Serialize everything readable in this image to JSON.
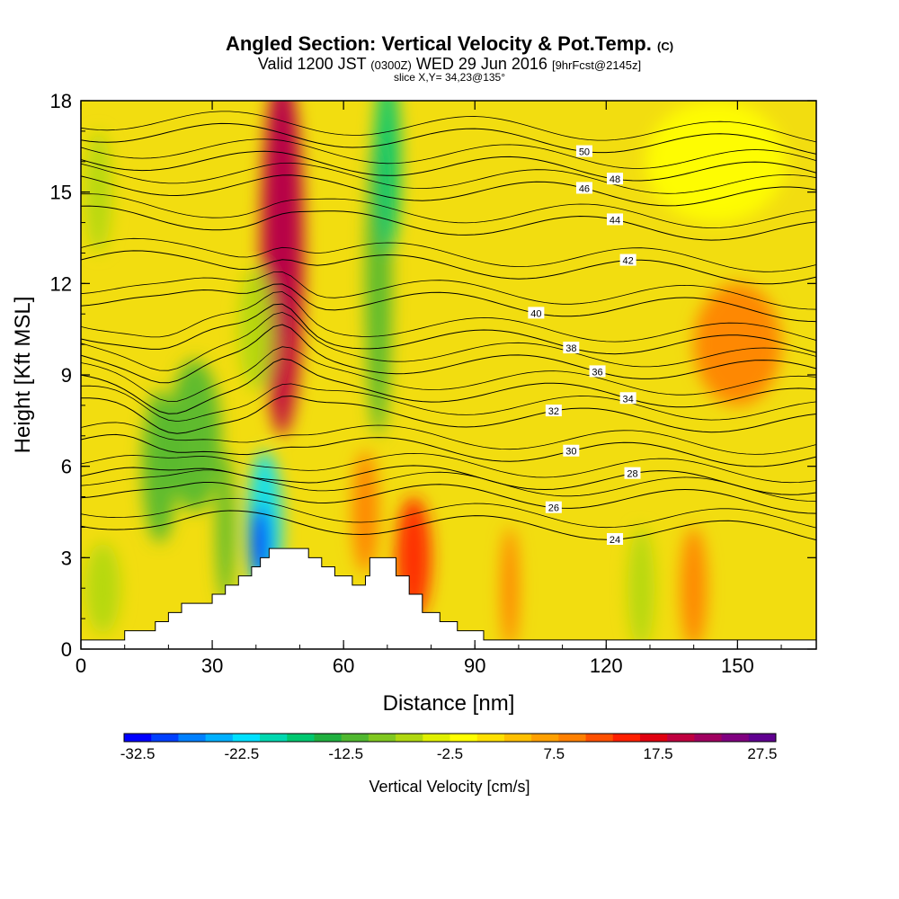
{
  "chart_data": {
    "type": "heatmap",
    "title": "Angled Section: Vertical Velocity & Pot.Temp.",
    "title_mark": "(C)",
    "subtitle": {
      "prefix": "Valid 1200 JST",
      "utc": "(0300Z)",
      "date": "WED 29 Jun 2016",
      "forecast": "[9hrFcst@2145z]"
    },
    "slice_note": "slice X,Y= 34,23@135°",
    "xlabel": "Distance [nm]",
    "ylabel": "Height [Kft MSL]",
    "xlim": [
      0,
      168
    ],
    "ylim": [
      0,
      18
    ],
    "xticks": [
      0,
      30,
      60,
      90,
      120,
      150
    ],
    "yticks": [
      0,
      3,
      6,
      9,
      12,
      15,
      18
    ],
    "colorbar": {
      "label": "Vertical Velocity [cm/s]",
      "ticks": [
        "-32.5",
        "-22.5",
        "-12.5",
        "-2.5",
        "7.5",
        "17.5",
        "27.5"
      ],
      "colors": [
        "#0000ff",
        "#0040ff",
        "#0080ff",
        "#00b0ff",
        "#00e0ff",
        "#00d8b0",
        "#00c870",
        "#20b040",
        "#50b830",
        "#80c820",
        "#b0d810",
        "#e0f000",
        "#ffff00",
        "#ffe000",
        "#ffc000",
        "#ffa000",
        "#ff8000",
        "#ff5000",
        "#ff2000",
        "#e00010",
        "#c00040",
        "#a00060",
        "#800080",
        "#600090"
      ]
    },
    "background_color": "#f2dd10",
    "terrain_profile": [
      [
        0,
        0.3
      ],
      [
        10,
        0.3
      ],
      [
        10,
        0.6
      ],
      [
        17,
        0.6
      ],
      [
        17,
        0.9
      ],
      [
        20,
        0.9
      ],
      [
        20,
        1.2
      ],
      [
        23,
        1.2
      ],
      [
        23,
        1.5
      ],
      [
        30,
        1.5
      ],
      [
        30,
        1.8
      ],
      [
        33,
        1.8
      ],
      [
        33,
        2.1
      ],
      [
        36,
        2.1
      ],
      [
        36,
        2.4
      ],
      [
        39,
        2.4
      ],
      [
        39,
        2.7
      ],
      [
        41,
        2.7
      ],
      [
        41,
        3.0
      ],
      [
        43,
        3.0
      ],
      [
        43,
        3.3
      ],
      [
        52,
        3.3
      ],
      [
        52,
        3.0
      ],
      [
        55,
        3.0
      ],
      [
        55,
        2.7
      ],
      [
        58,
        2.7
      ],
      [
        58,
        2.4
      ],
      [
        62,
        2.4
      ],
      [
        62,
        2.1
      ],
      [
        65,
        2.1
      ],
      [
        65,
        2.4
      ],
      [
        66,
        2.4
      ],
      [
        66,
        3.0
      ],
      [
        72,
        3.0
      ],
      [
        72,
        2.4
      ],
      [
        75,
        2.4
      ],
      [
        75,
        1.8
      ],
      [
        78,
        1.8
      ],
      [
        78,
        1.2
      ],
      [
        82,
        1.2
      ],
      [
        82,
        0.9
      ],
      [
        86,
        0.9
      ],
      [
        86,
        0.6
      ],
      [
        92,
        0.6
      ],
      [
        92,
        0.3
      ],
      [
        168,
        0.3
      ]
    ],
    "velocity_cells": [
      {
        "x": 46,
        "y": 14.5,
        "rx": 3,
        "ry": 4.5,
        "value": 27.5
      },
      {
        "x": 46,
        "y": 15.5,
        "rx": 2,
        "ry": 3,
        "value": 27.5
      },
      {
        "x": 46,
        "y": 13,
        "rx": 5,
        "ry": 6,
        "value": 17.5
      },
      {
        "x": 68,
        "y": 12,
        "rx": 3,
        "ry": 5,
        "value": -12.5
      },
      {
        "x": 70,
        "y": 16,
        "rx": 3,
        "ry": 3,
        "value": -17.5
      },
      {
        "x": 42,
        "y": 4.0,
        "rx": 4,
        "ry": 2.5,
        "value": -22.5
      },
      {
        "x": 41,
        "y": 3.5,
        "rx": 2,
        "ry": 1.2,
        "value": -32.5
      },
      {
        "x": 26,
        "y": 7.0,
        "rx": 6,
        "ry": 2.5,
        "value": -12.5
      },
      {
        "x": 18,
        "y": 6.0,
        "rx": 4,
        "ry": 2.5,
        "value": -12.5
      },
      {
        "x": 33,
        "y": 4.0,
        "rx": 2,
        "ry": 2.5,
        "value": -12.5
      },
      {
        "x": 40,
        "y": 10.5,
        "rx": 4,
        "ry": 2,
        "value": -7.5
      },
      {
        "x": 5,
        "y": 2.0,
        "rx": 4,
        "ry": 1.5,
        "value": -7.5
      },
      {
        "x": 4,
        "y": 15,
        "rx": 3,
        "ry": 2,
        "value": -7.5
      },
      {
        "x": 65,
        "y": 4.5,
        "rx": 3,
        "ry": 2,
        "value": 7.5
      },
      {
        "x": 76,
        "y": 3.0,
        "rx": 4,
        "ry": 2,
        "value": 12.5
      },
      {
        "x": 128,
        "y": 2.0,
        "rx": 3,
        "ry": 2,
        "value": -7.5
      },
      {
        "x": 140,
        "y": 2.0,
        "rx": 3,
        "ry": 2,
        "value": 7.5
      },
      {
        "x": 98,
        "y": 2.0,
        "rx": 2,
        "ry": 2,
        "value": 7.5
      },
      {
        "x": 150,
        "y": 10,
        "rx": 10,
        "ry": 2,
        "value": 7.5
      },
      {
        "x": 145,
        "y": 16,
        "rx": 16,
        "ry": 2,
        "value": -2.5
      }
    ],
    "theta_contours": [
      {
        "label": "24",
        "y": 4.0,
        "lx": 122
      },
      {
        "label": "26",
        "y": 5.0,
        "lx": 108
      },
      {
        "label": "28",
        "y": 5.6,
        "lx": 126
      },
      {
        "label": "30",
        "y": 6.5,
        "lx": 112
      },
      {
        "label": "32",
        "y": 7.6,
        "lx": 108
      },
      {
        "label": "34",
        "y": 8.4,
        "lx": 125
      },
      {
        "label": "36",
        "y": 9.3,
        "lx": 118
      },
      {
        "label": "38",
        "y": 10.1,
        "lx": 112
      },
      {
        "label": "40",
        "y": 11.3,
        "lx": 104
      },
      {
        "label": "42",
        "y": 12.5,
        "lx": 125
      },
      {
        "label": "44",
        "y": 13.9,
        "lx": 122
      },
      {
        "label": "46",
        "y": 15.0,
        "lx": 115
      },
      {
        "label": "48",
        "y": 15.8,
        "lx": 122
      },
      {
        "label": "50",
        "y": 16.7,
        "lx": 115
      }
    ]
  }
}
